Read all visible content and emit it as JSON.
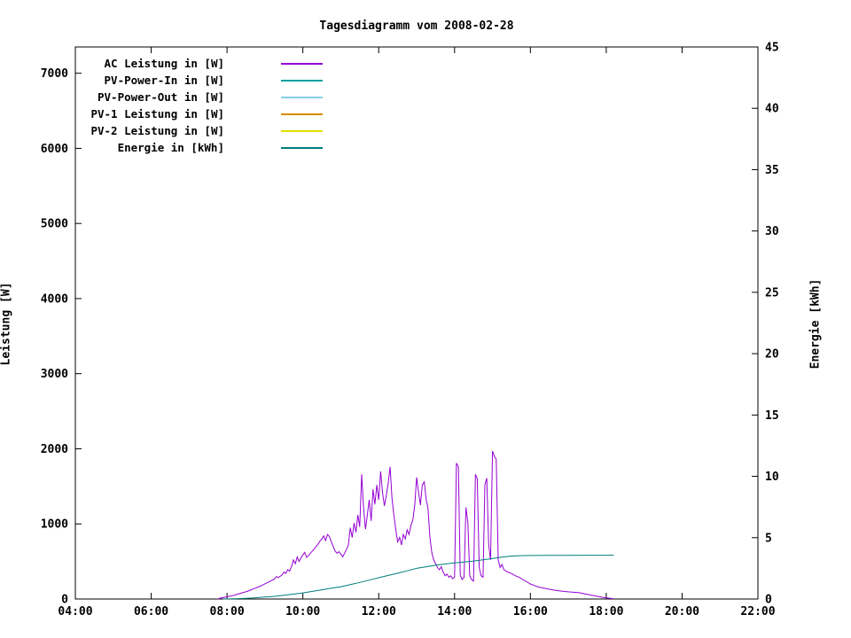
{
  "chart_data": {
    "type": "line",
    "title": "Tagesdiagramm vom 2008-02-28",
    "x_axis": {
      "min": 4,
      "max": 22,
      "ticks": [
        4,
        6,
        8,
        10,
        12,
        14,
        16,
        18,
        20,
        22
      ],
      "tick_labels": [
        "04:00",
        "06:00",
        "08:00",
        "10:00",
        "12:00",
        "14:00",
        "16:00",
        "18:00",
        "20:00",
        "22:00"
      ]
    },
    "y_left": {
      "label": "Leistung [W]",
      "min": 0,
      "max": 7350,
      "ticks": [
        0,
        1000,
        2000,
        3000,
        4000,
        5000,
        6000,
        7000
      ]
    },
    "y_right": {
      "label": "Energie [kWh]",
      "min": 0,
      "max": 45,
      "ticks": [
        0,
        5,
        10,
        15,
        20,
        25,
        30,
        35,
        40,
        45
      ]
    },
    "grid": false,
    "legend_position": "top-left",
    "series": [
      {
        "name": "AC Leistung in [W]",
        "color": "#9400d3",
        "axis": "left",
        "points": [
          [
            7.75,
            0
          ],
          [
            7.85,
            15
          ],
          [
            7.95,
            25
          ],
          [
            8.05,
            35
          ],
          [
            8.15,
            45
          ],
          [
            8.25,
            60
          ],
          [
            8.35,
            75
          ],
          [
            8.45,
            90
          ],
          [
            8.55,
            105
          ],
          [
            8.65,
            125
          ],
          [
            8.75,
            145
          ],
          [
            8.85,
            165
          ],
          [
            8.95,
            190
          ],
          [
            9.05,
            215
          ],
          [
            9.15,
            240
          ],
          [
            9.25,
            265
          ],
          [
            9.3,
            300
          ],
          [
            9.35,
            285
          ],
          [
            9.45,
            320
          ],
          [
            9.5,
            360
          ],
          [
            9.55,
            340
          ],
          [
            9.6,
            390
          ],
          [
            9.65,
            370
          ],
          [
            9.7,
            430
          ],
          [
            9.75,
            520
          ],
          [
            9.8,
            470
          ],
          [
            9.85,
            560
          ],
          [
            9.9,
            500
          ],
          [
            9.95,
            545
          ],
          [
            10.0,
            590
          ],
          [
            10.05,
            620
          ],
          [
            10.1,
            555
          ],
          [
            10.15,
            580
          ],
          [
            10.2,
            610
          ],
          [
            10.25,
            640
          ],
          [
            10.3,
            665
          ],
          [
            10.35,
            700
          ],
          [
            10.4,
            730
          ],
          [
            10.45,
            770
          ],
          [
            10.5,
            800
          ],
          [
            10.55,
            840
          ],
          [
            10.6,
            780
          ],
          [
            10.65,
            860
          ],
          [
            10.7,
            830
          ],
          [
            10.75,
            760
          ],
          [
            10.8,
            700
          ],
          [
            10.85,
            640
          ],
          [
            10.9,
            610
          ],
          [
            10.95,
            630
          ],
          [
            11.0,
            600
          ],
          [
            11.05,
            560
          ],
          [
            11.1,
            610
          ],
          [
            11.15,
            660
          ],
          [
            11.2,
            720
          ],
          [
            11.25,
            950
          ],
          [
            11.3,
            820
          ],
          [
            11.35,
            1010
          ],
          [
            11.4,
            890
          ],
          [
            11.45,
            1120
          ],
          [
            11.5,
            960
          ],
          [
            11.55,
            1660
          ],
          [
            11.6,
            1220
          ],
          [
            11.65,
            930
          ],
          [
            11.7,
            1120
          ],
          [
            11.75,
            1320
          ],
          [
            11.8,
            1040
          ],
          [
            11.85,
            1460
          ],
          [
            11.9,
            1260
          ],
          [
            11.95,
            1520
          ],
          [
            12.0,
            1320
          ],
          [
            12.05,
            1700
          ],
          [
            12.1,
            1420
          ],
          [
            12.15,
            1240
          ],
          [
            12.2,
            1380
          ],
          [
            12.25,
            1540
          ],
          [
            12.3,
            1760
          ],
          [
            12.35,
            1340
          ],
          [
            12.4,
            1120
          ],
          [
            12.45,
            920
          ],
          [
            12.5,
            760
          ],
          [
            12.55,
            820
          ],
          [
            12.6,
            720
          ],
          [
            12.65,
            860
          ],
          [
            12.7,
            800
          ],
          [
            12.75,
            920
          ],
          [
            12.8,
            860
          ],
          [
            12.85,
            980
          ],
          [
            12.9,
            1050
          ],
          [
            12.95,
            1250
          ],
          [
            13.0,
            1620
          ],
          [
            13.05,
            1430
          ],
          [
            13.1,
            1250
          ],
          [
            13.15,
            1520
          ],
          [
            13.2,
            1560
          ],
          [
            13.25,
            1330
          ],
          [
            13.3,
            1210
          ],
          [
            13.35,
            820
          ],
          [
            13.4,
            620
          ],
          [
            13.45,
            520
          ],
          [
            13.5,
            470
          ],
          [
            13.55,
            420
          ],
          [
            13.6,
            390
          ],
          [
            13.65,
            430
          ],
          [
            13.7,
            360
          ],
          [
            13.75,
            310
          ],
          [
            13.8,
            330
          ],
          [
            13.85,
            290
          ],
          [
            13.9,
            310
          ],
          [
            13.95,
            270
          ],
          [
            14.0,
            290
          ],
          [
            14.05,
            1810
          ],
          [
            14.1,
            1760
          ],
          [
            14.15,
            320
          ],
          [
            14.2,
            260
          ],
          [
            14.25,
            290
          ],
          [
            14.3,
            1220
          ],
          [
            14.35,
            1020
          ],
          [
            14.4,
            310
          ],
          [
            14.45,
            260
          ],
          [
            14.5,
            240
          ],
          [
            14.55,
            1660
          ],
          [
            14.6,
            1600
          ],
          [
            14.65,
            420
          ],
          [
            14.7,
            310
          ],
          [
            14.75,
            290
          ],
          [
            14.8,
            1520
          ],
          [
            14.85,
            1610
          ],
          [
            14.9,
            720
          ],
          [
            14.95,
            520
          ],
          [
            15.0,
            1970
          ],
          [
            15.05,
            1900
          ],
          [
            15.1,
            1860
          ],
          [
            15.15,
            520
          ],
          [
            15.2,
            420
          ],
          [
            15.25,
            460
          ],
          [
            15.3,
            390
          ],
          [
            15.4,
            360
          ],
          [
            15.5,
            340
          ],
          [
            15.6,
            310
          ],
          [
            15.7,
            290
          ],
          [
            15.8,
            260
          ],
          [
            15.9,
            230
          ],
          [
            16.0,
            200
          ],
          [
            16.1,
            180
          ],
          [
            16.2,
            160
          ],
          [
            16.3,
            150
          ],
          [
            16.4,
            140
          ],
          [
            16.5,
            130
          ],
          [
            16.6,
            120
          ],
          [
            16.7,
            112
          ],
          [
            16.8,
            106
          ],
          [
            16.9,
            100
          ],
          [
            17.0,
            96
          ],
          [
            17.1,
            92
          ],
          [
            17.2,
            88
          ],
          [
            17.3,
            82
          ],
          [
            17.4,
            72
          ],
          [
            17.5,
            62
          ],
          [
            17.6,
            52
          ],
          [
            17.7,
            42
          ],
          [
            17.8,
            32
          ],
          [
            17.9,
            22
          ],
          [
            18.0,
            16
          ],
          [
            18.1,
            10
          ],
          [
            18.2,
            4
          ]
        ]
      },
      {
        "name": "PV-Power-In in [W]",
        "color": "#009e9e",
        "axis": "left",
        "points": []
      },
      {
        "name": "PV-Power-Out in [W]",
        "color": "#87ceeb",
        "axis": "left",
        "points": []
      },
      {
        "name": "PV-1 Leistung in [W]",
        "color": "#d98c00",
        "axis": "left",
        "points": []
      },
      {
        "name": "PV-2 Leistung in [W]",
        "color": "#dede00",
        "axis": "left",
        "points": []
      },
      {
        "name": "Energie in [kWh]",
        "color": "#007d7d",
        "axis": "right",
        "points": [
          [
            7.9,
            0
          ],
          [
            8.25,
            0.03
          ],
          [
            8.5,
            0.06
          ],
          [
            8.75,
            0.1
          ],
          [
            9.0,
            0.16
          ],
          [
            9.25,
            0.22
          ],
          [
            9.5,
            0.3
          ],
          [
            9.75,
            0.4
          ],
          [
            10.0,
            0.5
          ],
          [
            10.25,
            0.62
          ],
          [
            10.5,
            0.75
          ],
          [
            10.75,
            0.88
          ],
          [
            11.0,
            1.0
          ],
          [
            11.25,
            1.17
          ],
          [
            11.5,
            1.35
          ],
          [
            11.75,
            1.54
          ],
          [
            12.0,
            1.73
          ],
          [
            12.25,
            1.92
          ],
          [
            12.5,
            2.1
          ],
          [
            12.75,
            2.3
          ],
          [
            13.0,
            2.5
          ],
          [
            13.25,
            2.63
          ],
          [
            13.5,
            2.75
          ],
          [
            13.75,
            2.85
          ],
          [
            14.0,
            2.95
          ],
          [
            14.25,
            3.02
          ],
          [
            14.5,
            3.1
          ],
          [
            14.75,
            3.2
          ],
          [
            15.0,
            3.3
          ],
          [
            15.25,
            3.42
          ],
          [
            15.5,
            3.5
          ],
          [
            15.75,
            3.53
          ],
          [
            16.0,
            3.55
          ],
          [
            16.5,
            3.56
          ],
          [
            17.0,
            3.56
          ],
          [
            17.5,
            3.57
          ],
          [
            18.0,
            3.57
          ],
          [
            18.2,
            3.57
          ]
        ]
      }
    ]
  }
}
